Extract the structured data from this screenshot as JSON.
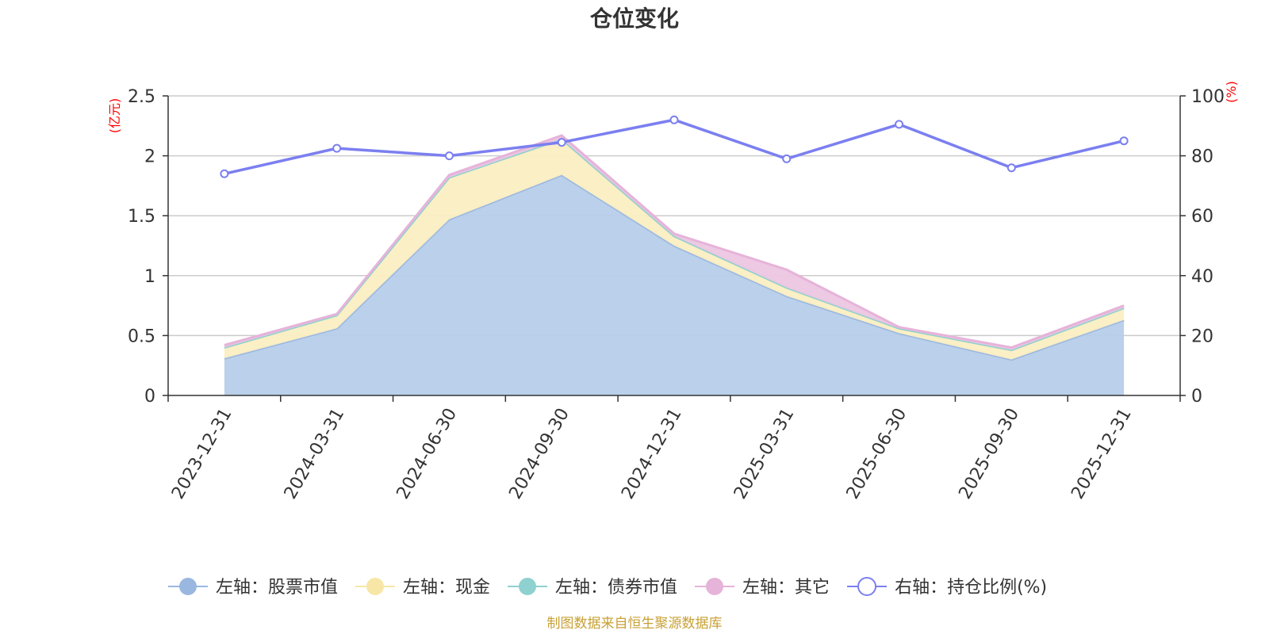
{
  "chart_data": {
    "type": "area",
    "title": "仓位变化",
    "categories": [
      "2023-12-31",
      "2024-03-31",
      "2024-06-30",
      "2024-09-30",
      "2024-12-31",
      "2025-03-31",
      "2025-06-30",
      "2025-09-30",
      "2025-12-31"
    ],
    "left_axis": {
      "unit": "(亿元)",
      "ylim": [
        0,
        2.5
      ],
      "ticks": [
        "0",
        "0.5",
        "1",
        "1.5",
        "2",
        "2.5"
      ]
    },
    "right_axis": {
      "unit": "(%)",
      "ylim": [
        0,
        100
      ],
      "ticks": [
        "0",
        "20",
        "40",
        "60",
        "80",
        "100"
      ]
    },
    "series": [
      {
        "name": "左轴：股票市值",
        "axis": "left",
        "stacked": true,
        "color": "#9ab7e0",
        "fill": "#b6cdea",
        "values": [
          0.31,
          0.56,
          1.47,
          1.84,
          1.25,
          0.83,
          0.52,
          0.3,
          0.63
        ]
      },
      {
        "name": "左轴：现金",
        "axis": "left",
        "stacked": true,
        "color": "#f8e6a6",
        "fill": "#fbeec2",
        "values": [
          0.09,
          0.11,
          0.35,
          0.3,
          0.08,
          0.07,
          0.04,
          0.08,
          0.1
        ]
      },
      {
        "name": "左轴：债券市值",
        "axis": "left",
        "stacked": true,
        "color": "#8ed1d0",
        "fill": "#a8dcdb",
        "values": [
          0,
          0,
          0,
          0,
          0,
          0,
          0,
          0,
          0
        ]
      },
      {
        "name": "左轴：其它",
        "axis": "left",
        "stacked": true,
        "color": "#e6b3d9",
        "fill": "#ecc6e1",
        "values": [
          0.02,
          0.01,
          0.02,
          0.03,
          0.02,
          0.15,
          0.01,
          0.02,
          0.02
        ]
      },
      {
        "name": "右轴：持仓比例(%)",
        "axis": "right",
        "stacked": false,
        "color": "#7b7ff0",
        "type": "line",
        "values": [
          74,
          82.5,
          80,
          84.5,
          92,
          79,
          90.5,
          76,
          85
        ]
      }
    ],
    "source_text": "制图数据来自恒生聚源数据库"
  }
}
